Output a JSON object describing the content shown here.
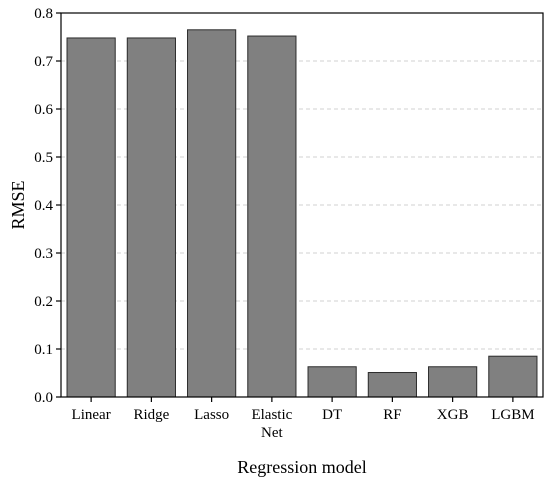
{
  "chart_data": {
    "type": "bar",
    "title": "",
    "xlabel": "Regression model",
    "ylabel": "RMSE",
    "categories": [
      [
        "Linear"
      ],
      [
        "Ridge"
      ],
      [
        "Lasso"
      ],
      [
        "Elastic",
        "Net"
      ],
      [
        "DT"
      ],
      [
        "RF"
      ],
      [
        "XGB"
      ],
      [
        "LGBM"
      ]
    ],
    "values": [
      0.748,
      0.748,
      0.765,
      0.752,
      0.063,
      0.051,
      0.063,
      0.085
    ],
    "ylim": [
      0,
      0.8
    ],
    "yticks": [
      "0.0",
      "0.1",
      "0.2",
      "0.3",
      "0.4",
      "0.5",
      "0.6",
      "0.7",
      "0.8"
    ],
    "grid": "horizontal-dashed",
    "colors": {
      "bar_fill": "#808080",
      "bar_stroke": "#2b2b2b",
      "axis": "#000000",
      "grid": "#d0d0d0"
    }
  }
}
